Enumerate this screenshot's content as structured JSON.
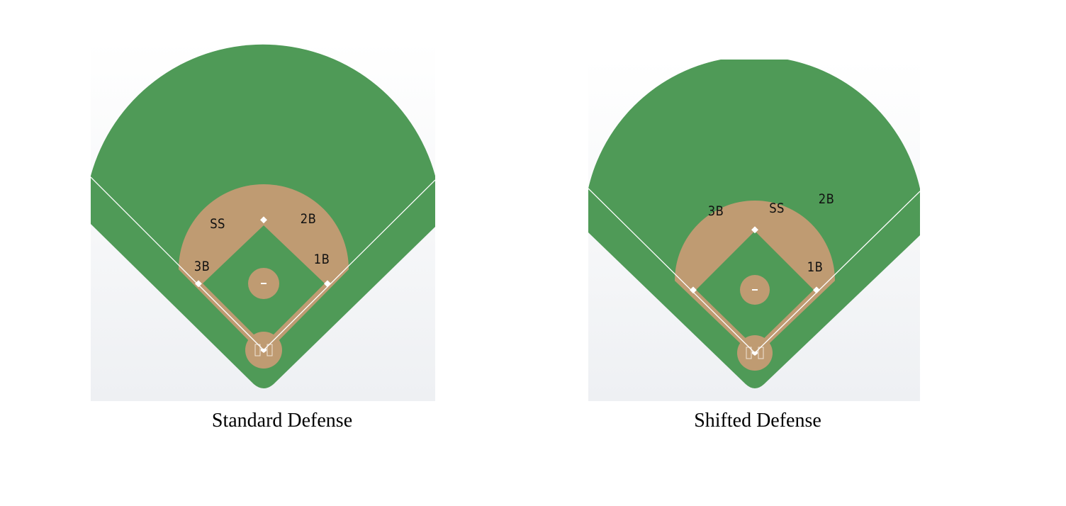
{
  "diagrams": [
    {
      "caption": "Standard Defense",
      "positions": [
        {
          "label": "SS"
        },
        {
          "label": "2B"
        },
        {
          "label": "3B"
        },
        {
          "label": "1B"
        }
      ]
    },
    {
      "caption": "Shifted Defense",
      "positions": [
        {
          "label": "3B"
        },
        {
          "label": "SS"
        },
        {
          "label": "2B"
        },
        {
          "label": "1B"
        }
      ]
    }
  ],
  "colors": {
    "grass": "#4f9a57",
    "dirt": "#bf9b72",
    "chalk": "#ffffff",
    "background": "#ffffff",
    "panel_backdrop": "#f3f4f6"
  }
}
